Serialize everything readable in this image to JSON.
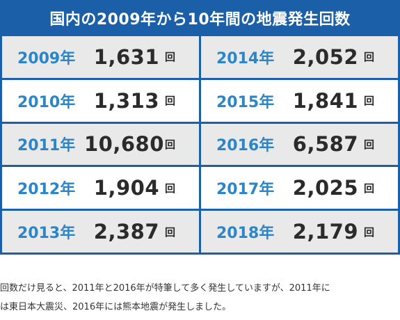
{
  "table": {
    "title": "国内の2009年から10年間の地震発生回数",
    "unit": "回",
    "left_column": [
      {
        "year": "2009年",
        "count": "1,631"
      },
      {
        "year": "2010年",
        "count": "1,313"
      },
      {
        "year": "2011年",
        "count": "10,680"
      },
      {
        "year": "2012年",
        "count": "1,904"
      },
      {
        "year": "2013年",
        "count": "2,387"
      }
    ],
    "right_column": [
      {
        "year": "2014年",
        "count": "2,052"
      },
      {
        "year": "2015年",
        "count": "1,841"
      },
      {
        "year": "2016年",
        "count": "6,587"
      },
      {
        "year": "2017年",
        "count": "2,025"
      },
      {
        "year": "2018年",
        "count": "2,179"
      }
    ]
  },
  "caption": {
    "line1": "回数だけ見ると、2011年と2016年が特筆して多く発生していますが、2011年に",
    "line2": "は東日本大震災、2016年には熊本地震が発生しました。"
  },
  "colors": {
    "header_bg": "#1a5fa8",
    "year_text": "#2a86c9",
    "row_shaded": "#e9e9e9"
  }
}
